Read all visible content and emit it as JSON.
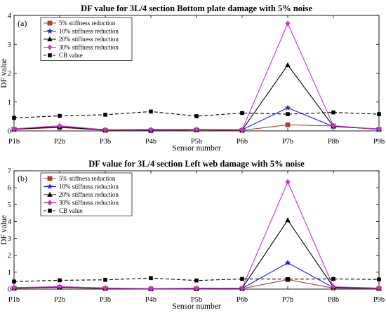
{
  "chart_data": [
    {
      "type": "line",
      "panel_label": "(a)",
      "title": "DF value  for 3L/4 section Bottom plate damage with 5% noise",
      "xlabel": "Sensor number",
      "ylabel": "DF value",
      "categories": [
        "P1b",
        "P2b",
        "P3b",
        "P4b",
        "P5b",
        "P6b",
        "P7b",
        "P8b",
        "P9b"
      ],
      "ylim": [
        0,
        4
      ],
      "yticks": [
        "0",
        "1",
        "2",
        "3",
        "4"
      ],
      "grid": false,
      "legend_position": "top-left",
      "series": [
        {
          "name": "5% stiffness reduction",
          "color": "#a0462a",
          "marker": "square",
          "dash": false,
          "values": [
            0.05,
            0.12,
            0.02,
            0.01,
            0.03,
            0.02,
            0.21,
            0.17,
            0.05
          ]
        },
        {
          "name": "10% stiffness reduction",
          "color": "#1a1aff",
          "marker": "star",
          "dash": false,
          "values": [
            0.08,
            0.13,
            0.04,
            0.02,
            0.05,
            0.04,
            0.8,
            0.15,
            0.07
          ]
        },
        {
          "name": "20% stiffness reduction",
          "color": "#000000",
          "marker": "triangle",
          "dash": false,
          "values": [
            0.06,
            0.14,
            0.03,
            0.03,
            0.04,
            0.03,
            2.28,
            0.16,
            0.06
          ]
        },
        {
          "name": "30% stiffness reduction",
          "color": "#cc33cc",
          "marker": "diamond",
          "dash": false,
          "values": [
            0.07,
            0.18,
            0.04,
            0.05,
            0.05,
            0.04,
            3.72,
            0.18,
            0.06
          ]
        },
        {
          "name": "CB value",
          "color": "#000000",
          "marker": "square-filled",
          "dash": true,
          "values": [
            0.45,
            0.52,
            0.56,
            0.67,
            0.51,
            0.62,
            0.58,
            0.64,
            0.58
          ]
        }
      ]
    },
    {
      "type": "line",
      "panel_label": "(b)",
      "title": "DF value  for 3L/4 section Left web damage with 5% noise",
      "xlabel": "Sensor number",
      "ylabel": "DF value",
      "categories": [
        "P1b",
        "P2b",
        "P3b",
        "P4b",
        "P5b",
        "P6b",
        "P7b",
        "P8b",
        "P9b"
      ],
      "ylim": [
        0,
        7
      ],
      "yticks": [
        "0",
        "1",
        "2",
        "3",
        "4",
        "5",
        "6",
        "7"
      ],
      "grid": false,
      "legend_position": "top-left",
      "series": [
        {
          "name": "5% stiffness reduction",
          "color": "#a0462a",
          "marker": "square",
          "dash": false,
          "values": [
            0.05,
            0.1,
            0.03,
            0.01,
            0.02,
            0.03,
            0.56,
            0.06,
            0.03
          ]
        },
        {
          "name": "10% stiffness reduction",
          "color": "#1a1aff",
          "marker": "star",
          "dash": false,
          "values": [
            0.08,
            0.12,
            0.05,
            0.02,
            0.04,
            0.04,
            1.56,
            0.09,
            0.05
          ]
        },
        {
          "name": "20% stiffness reduction",
          "color": "#000000",
          "marker": "triangle",
          "dash": false,
          "values": [
            0.07,
            0.13,
            0.06,
            0.02,
            0.05,
            0.05,
            4.08,
            0.12,
            0.05
          ]
        },
        {
          "name": "30% stiffness reduction",
          "color": "#cc33cc",
          "marker": "diamond",
          "dash": false,
          "values": [
            0.09,
            0.15,
            0.07,
            0.03,
            0.06,
            0.06,
            6.34,
            0.14,
            0.06
          ]
        },
        {
          "name": "CB value",
          "color": "#000000",
          "marker": "square-filled",
          "dash": true,
          "values": [
            0.45,
            0.52,
            0.55,
            0.65,
            0.51,
            0.6,
            0.59,
            0.6,
            0.57
          ]
        }
      ]
    }
  ]
}
